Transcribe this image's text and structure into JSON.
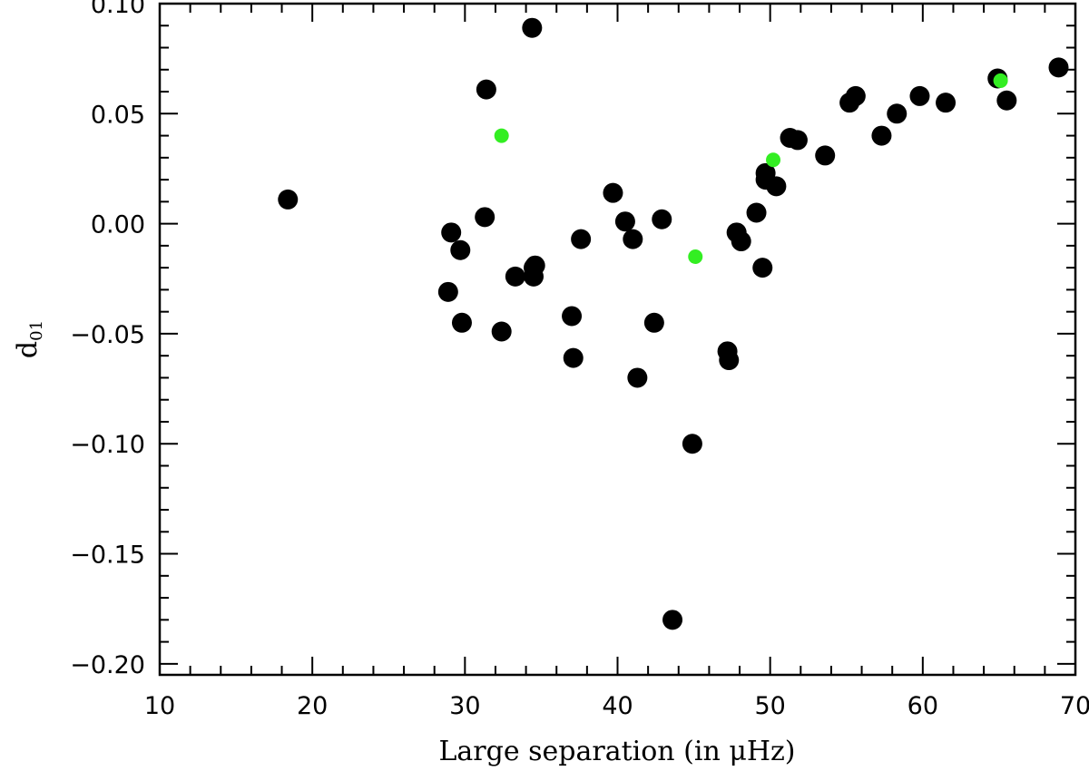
{
  "chart_data": {
    "type": "scatter",
    "xlabel": "Large separation (in μHz)",
    "ylabel_main": "d",
    "ylabel_sub": "01",
    "xlim": [
      10,
      70
    ],
    "ylim": [
      -0.205,
      0.1
    ],
    "x_ticks": [
      10,
      20,
      30,
      40,
      50,
      60,
      70
    ],
    "x_tick_labels": [
      "10",
      "20",
      "30",
      "40",
      "50",
      "60",
      "70"
    ],
    "y_ticks": [
      0.1,
      0.05,
      0.0,
      -0.05,
      -0.1,
      -0.15,
      -0.2
    ],
    "y_tick_labels": [
      "0.10",
      "0.05",
      "0.00",
      "−0.05",
      "−0.10",
      "−0.15",
      "−0.20"
    ],
    "grid": false,
    "series": [
      {
        "color": "#000000",
        "marker_size": "large",
        "points": [
          [
            18.4,
            0.011
          ],
          [
            28.9,
            -0.031
          ],
          [
            29.1,
            -0.004
          ],
          [
            29.7,
            -0.012
          ],
          [
            29.8,
            -0.045
          ],
          [
            31.4,
            0.061
          ],
          [
            31.3,
            0.003
          ],
          [
            32.4,
            -0.049
          ],
          [
            33.3,
            -0.024
          ],
          [
            34.4,
            0.089
          ],
          [
            34.5,
            -0.02
          ],
          [
            34.6,
            -0.019
          ],
          [
            34.5,
            -0.024
          ],
          [
            37.0,
            -0.042
          ],
          [
            37.1,
            -0.061
          ],
          [
            37.6,
            -0.007
          ],
          [
            39.7,
            0.014
          ],
          [
            40.5,
            0.001
          ],
          [
            41.0,
            -0.007
          ],
          [
            41.3,
            -0.07
          ],
          [
            42.4,
            -0.045
          ],
          [
            42.9,
            0.002
          ],
          [
            43.6,
            -0.18
          ],
          [
            44.9,
            -0.1
          ],
          [
            47.2,
            -0.058
          ],
          [
            47.3,
            -0.062
          ],
          [
            47.8,
            -0.004
          ],
          [
            48.1,
            -0.008
          ],
          [
            49.1,
            0.005
          ],
          [
            49.5,
            -0.02
          ],
          [
            49.7,
            0.023
          ],
          [
            49.7,
            0.02
          ],
          [
            50.4,
            0.017
          ],
          [
            51.3,
            0.039
          ],
          [
            51.8,
            0.038
          ],
          [
            53.6,
            0.031
          ],
          [
            55.2,
            0.055
          ],
          [
            55.6,
            0.058
          ],
          [
            57.3,
            0.04
          ],
          [
            58.3,
            0.05
          ],
          [
            59.8,
            0.058
          ],
          [
            61.5,
            0.055
          ],
          [
            64.9,
            0.066
          ],
          [
            65.5,
            0.056
          ],
          [
            68.9,
            0.071
          ]
        ]
      },
      {
        "color": "#33ee22",
        "marker_size": "small",
        "points": [
          [
            32.4,
            0.04
          ],
          [
            45.1,
            -0.015
          ],
          [
            50.2,
            0.029
          ],
          [
            65.1,
            0.065
          ]
        ]
      }
    ]
  }
}
